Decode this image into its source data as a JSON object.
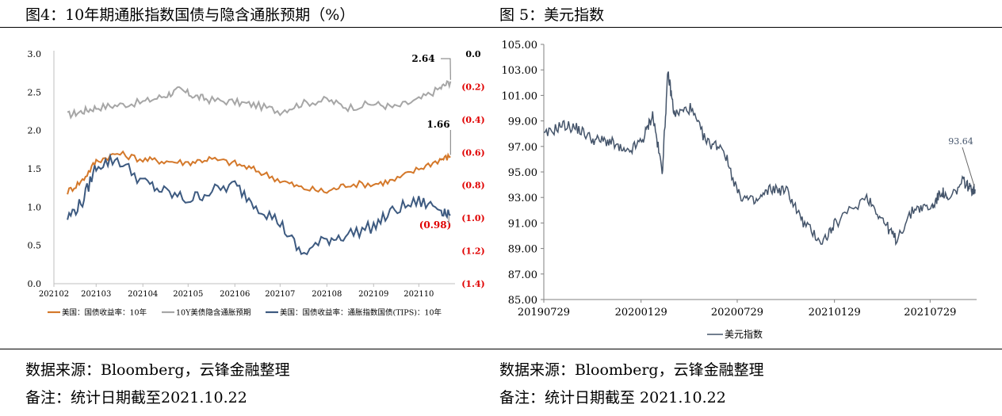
{
  "left": {
    "caption": "图4：10年期通胀指数国债与隐含通胀预期（%）",
    "source": "数据来源：Bloomberg，云锋金融整理",
    "note": "备注：统计日期截至2021.10.22"
  },
  "right": {
    "caption": "图 5：美元指数",
    "source": "数据来源：Bloomberg，云锋金融整理",
    "note": "备注：统计日期截至 2021.10.22"
  },
  "chart_data": [
    {
      "type": "line",
      "x_ticks": [
        "202102",
        "202103",
        "202104",
        "202105",
        "202106",
        "202107",
        "202108",
        "202109",
        "202110"
      ],
      "y_left_ticks": [
        "0.0",
        "0.5",
        "1.0",
        "1.5",
        "2.0",
        "2.5",
        "3.0"
      ],
      "y_right_ticks": [
        "0.0",
        "(0.2)",
        "(0.4)",
        "(0.6)",
        "(0.8)",
        "(1.0)",
        "(1.2)",
        "(1.4)"
      ],
      "ylim_left": [
        0,
        3
      ],
      "ylim_right": [
        -1.4,
        0
      ],
      "annotations": [
        {
          "text": "2.64",
          "value": 2.64,
          "series": 0
        },
        {
          "text": "1.66",
          "value": 1.66,
          "series": 1
        },
        {
          "text": "(0.98)",
          "value": -0.98,
          "series": 2
        }
      ],
      "series": [
        {
          "name": "10Y美债隐含通胀预期",
          "axis": "left",
          "color": "#a6a6a6",
          "x": [
            "2021-02-10",
            "2021-02-20",
            "2021-03-01",
            "2021-03-15",
            "2021-04-01",
            "2021-04-15",
            "2021-04-25",
            "2021-05-05",
            "2021-05-15",
            "2021-06-01",
            "2021-06-15",
            "2021-07-01",
            "2021-07-15",
            "2021-08-01",
            "2021-08-15",
            "2021-09-01",
            "2021-09-15",
            "2021-10-01",
            "2021-10-15",
            "2021-10-22"
          ],
          "values": [
            2.2,
            2.25,
            2.3,
            2.33,
            2.37,
            2.45,
            2.53,
            2.45,
            2.4,
            2.37,
            2.33,
            2.25,
            2.35,
            2.4,
            2.3,
            2.35,
            2.3,
            2.4,
            2.55,
            2.64
          ]
        },
        {
          "name": "美国：国债收益率：10年",
          "axis": "left",
          "color": "#d4782a",
          "x": [
            "2021-02-10",
            "2021-02-20",
            "2021-03-01",
            "2021-03-15",
            "2021-04-01",
            "2021-04-15",
            "2021-05-01",
            "2021-05-15",
            "2021-06-01",
            "2021-06-15",
            "2021-07-01",
            "2021-07-15",
            "2021-08-01",
            "2021-08-15",
            "2021-09-01",
            "2021-09-15",
            "2021-10-01",
            "2021-10-15",
            "2021-10-22"
          ],
          "values": [
            1.2,
            1.35,
            1.6,
            1.7,
            1.62,
            1.6,
            1.58,
            1.63,
            1.57,
            1.48,
            1.35,
            1.25,
            1.2,
            1.3,
            1.3,
            1.35,
            1.5,
            1.62,
            1.66
          ]
        },
        {
          "name": "美国：国债收益率：通胀指数国债(TIPS)：10年",
          "axis": "right",
          "color": "#3d5a80",
          "x": [
            "2021-02-10",
            "2021-02-20",
            "2021-03-01",
            "2021-03-15",
            "2021-04-01",
            "2021-04-15",
            "2021-05-01",
            "2021-05-15",
            "2021-06-01",
            "2021-06-15",
            "2021-07-01",
            "2021-07-15",
            "2021-08-01",
            "2021-08-15",
            "2021-09-01",
            "2021-09-15",
            "2021-10-01",
            "2021-10-15",
            "2021-10-22"
          ],
          "values": [
            -1.0,
            -0.9,
            -0.68,
            -0.64,
            -0.78,
            -0.84,
            -0.89,
            -0.84,
            -0.8,
            -0.92,
            -1.03,
            -1.22,
            -1.13,
            -1.1,
            -1.05,
            -0.95,
            -0.9,
            -0.94,
            -0.98
          ]
        }
      ]
    },
    {
      "type": "line",
      "x_ticks": [
        "20190729",
        "20200129",
        "20200729",
        "20210129",
        "20210729"
      ],
      "y_ticks": [
        "85.00",
        "87.00",
        "89.00",
        "91.00",
        "93.00",
        "95.00",
        "97.00",
        "99.00",
        "101.00",
        "103.00",
        "105.00"
      ],
      "ylim": [
        85,
        105
      ],
      "annotations": [
        {
          "text": "93.64",
          "value": 93.64
        }
      ],
      "series": [
        {
          "name": "美元指数",
          "color": "#44546a",
          "x": [
            "2019-07-29",
            "2019-09-01",
            "2019-10-01",
            "2019-11-01",
            "2019-12-01",
            "2020-01-01",
            "2020-02-01",
            "2020-02-20",
            "2020-03-09",
            "2020-03-20",
            "2020-04-01",
            "2020-05-01",
            "2020-06-01",
            "2020-07-01",
            "2020-08-01",
            "2020-09-01",
            "2020-10-01",
            "2020-11-01",
            "2020-12-01",
            "2021-01-06",
            "2021-02-01",
            "2021-03-31",
            "2021-05-01",
            "2021-05-25",
            "2021-06-30",
            "2021-08-01",
            "2021-08-20",
            "2021-09-01",
            "2021-09-30",
            "2021-10-15",
            "2021-10-22"
          ],
          "values": [
            97.8,
            98.7,
            98.4,
            97.5,
            97.4,
            96.4,
            97.5,
            99.5,
            95.0,
            102.8,
            99.5,
            100.0,
            97.3,
            97.0,
            93.2,
            92.6,
            93.7,
            93.5,
            91.0,
            89.5,
            91.0,
            93.1,
            91.2,
            89.7,
            92.2,
            92.2,
            93.5,
            92.7,
            94.3,
            93.6,
            93.64
          ]
        }
      ]
    }
  ]
}
